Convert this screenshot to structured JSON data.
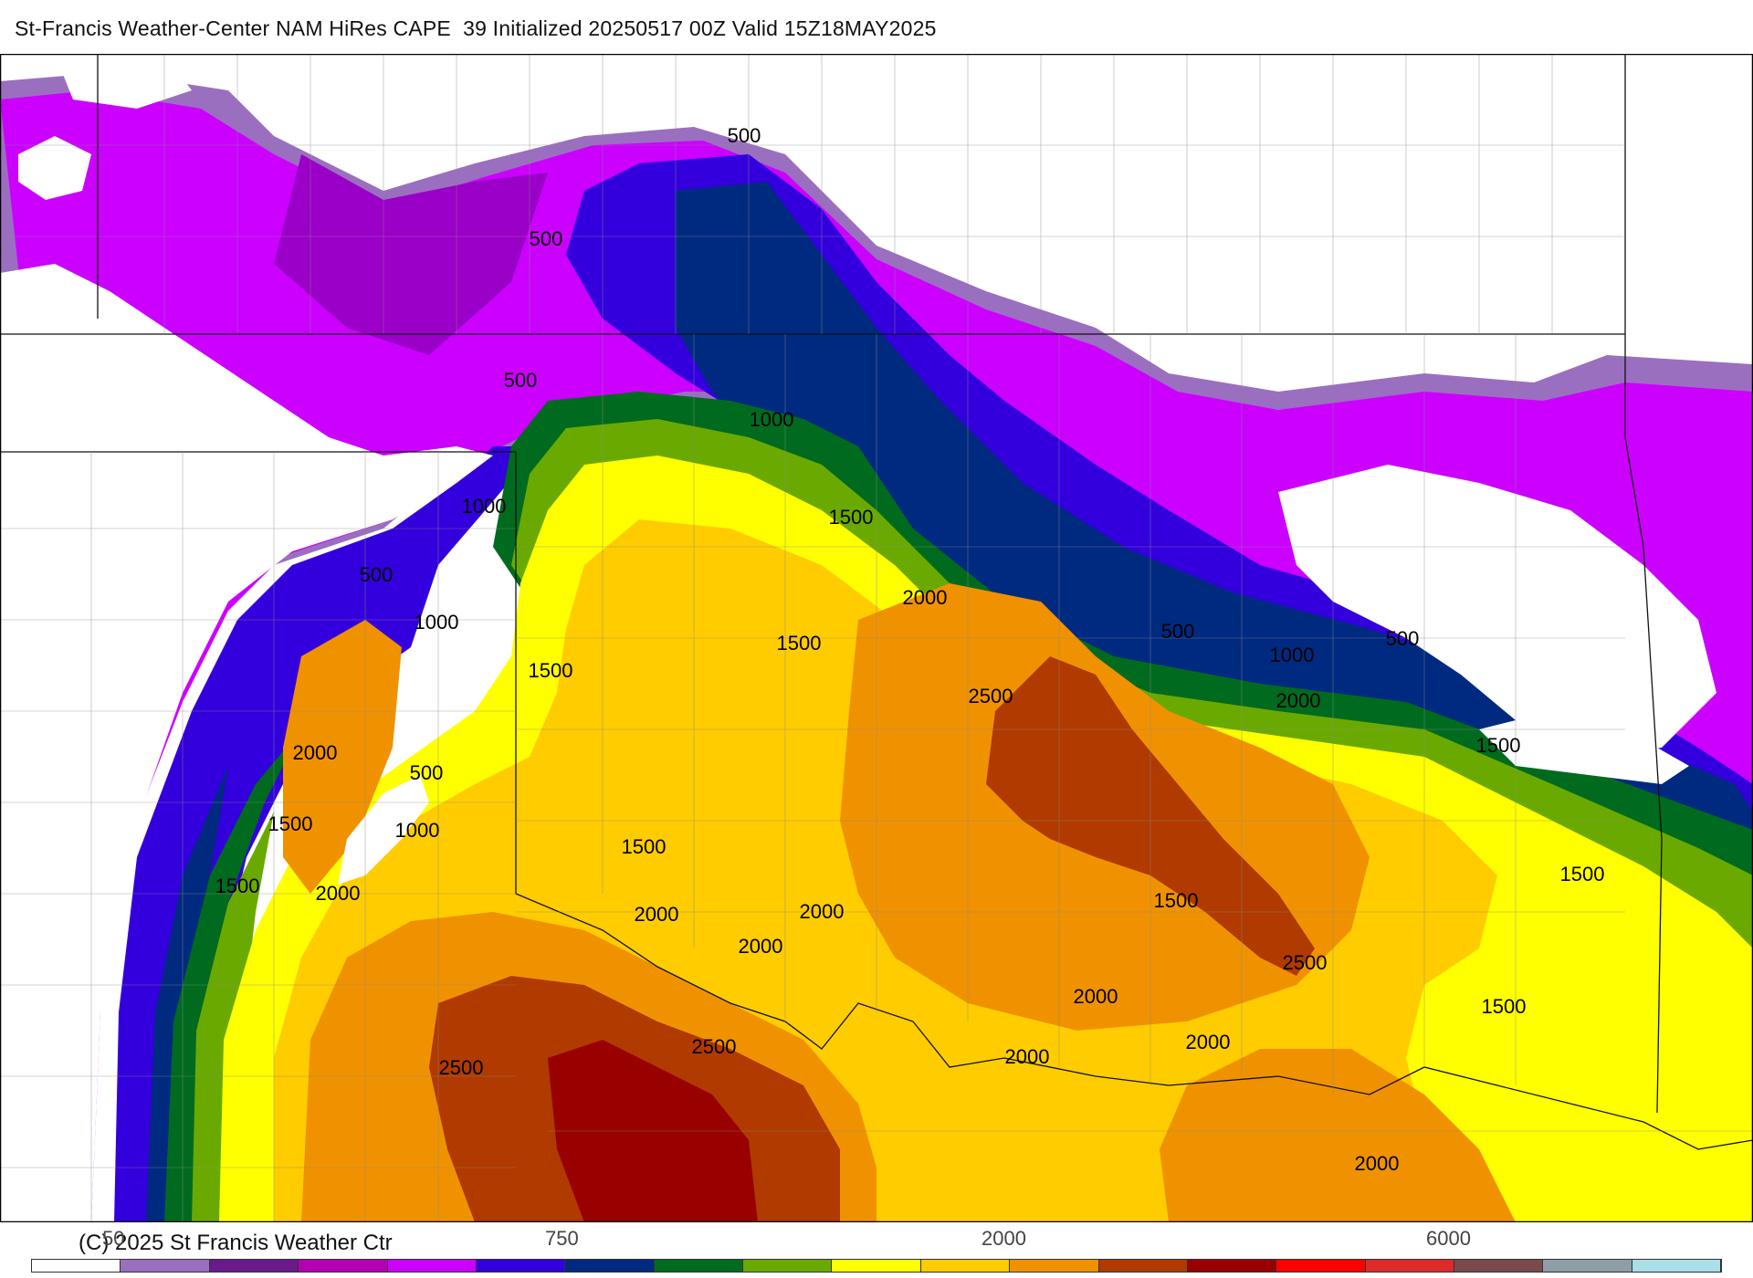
{
  "title": "St-Francis Weather-Center NAM HiRes CAPE  39 Initialized 20250517 00Z Valid 15Z18MAY2025",
  "copyright": "(C) 2025 St Francis Weather Ctr",
  "legend": {
    "ticks": [
      "50",
      "750",
      "2000",
      "6000"
    ],
    "colors": [
      "#ffffff",
      "#9b6fbf",
      "#6b1a8a",
      "#b300b3",
      "#cc00ff",
      "#3300dd",
      "#002a80",
      "#006b1e",
      "#6aaa00",
      "#ffff00",
      "#ffcc00",
      "#f09200",
      "#b03a00",
      "#990000",
      "#ff0000",
      "#dd2a2a",
      "#7a4a4a",
      "#8e9ea8",
      "#a8dfe8"
    ]
  },
  "contour_labels": [
    "500",
    "500",
    "500",
    "500",
    "500",
    "500",
    "500",
    "1000",
    "1000",
    "1000",
    "1000",
    "1000",
    "1500",
    "1500",
    "1500",
    "1500",
    "1500",
    "1500",
    "1500",
    "1500",
    "1500",
    "1500",
    "2000",
    "2000",
    "2000",
    "2000",
    "2000",
    "2000",
    "2000",
    "2000",
    "2000",
    "2000",
    "2000",
    "2500",
    "2500",
    "2500",
    "2500"
  ]
}
